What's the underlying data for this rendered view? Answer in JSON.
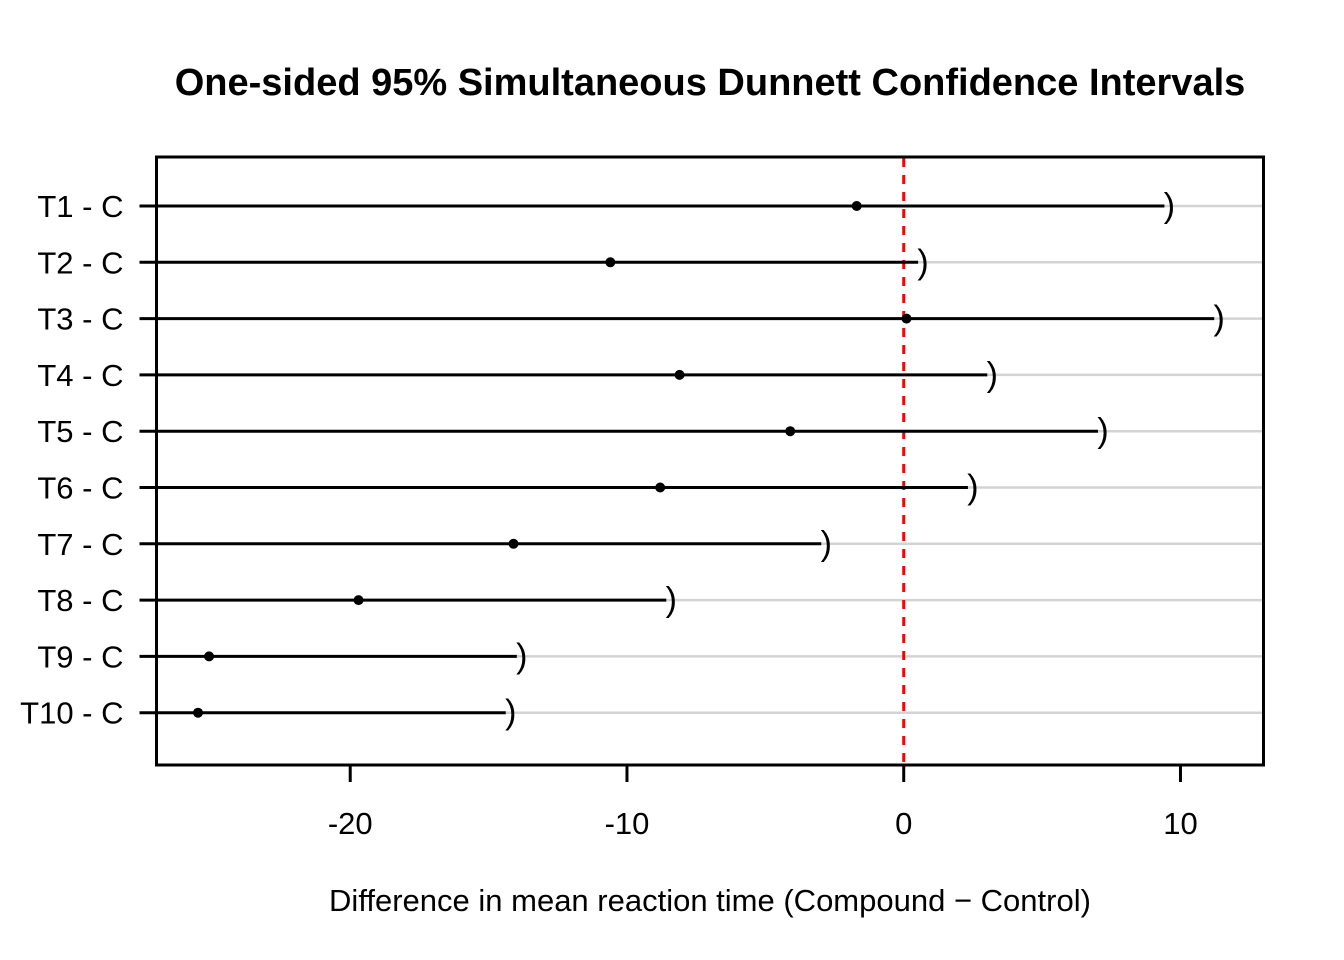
{
  "page": {
    "background": "#FFFFFF"
  },
  "chart_data": {
    "type": "interval",
    "subtype": "one-sided simultaneous confidence intervals (Dunnett)",
    "title": "One-sided 95% Simultaneous Dunnett Confidence Intervals",
    "xlabel": "Difference in mean reaction time (Compound − Control)",
    "ylabel": "",
    "categories": [
      "T1 - C",
      "T2 - C",
      "T3 - C",
      "T4 - C",
      "T5 - C",
      "T6 - C",
      "T7 - C",
      "T8 - C",
      "T9 - C",
      "T10 - C"
    ],
    "series": [
      {
        "name": "estimate",
        "marker": "filled-circle",
        "values": [
          -1.7,
          -10.6,
          0.1,
          -8.1,
          -4.1,
          -8.8,
          -14.1,
          -19.7,
          -25.1,
          -25.5
        ]
      },
      {
        "name": "upper_bound",
        "marker": "right-parenthesis-open-interval",
        "values": [
          9.6,
          0.7,
          11.4,
          3.2,
          7.2,
          2.5,
          -2.8,
          -8.4,
          -13.8,
          -14.2
        ]
      }
    ],
    "lower_bound": "-Inf",
    "upper_bound_marker_glyph": ")",
    "x_ticks": [
      -20,
      -10,
      0,
      10
    ],
    "xlim": [
      -27,
      13
    ],
    "reference_line": {
      "x": 0,
      "style": "dashed",
      "color": "#FF0000"
    },
    "grid": {
      "horizontal_per_row": true,
      "color": "#D3D3D3"
    },
    "legend": "none",
    "colors": {
      "interval": "#000000",
      "point": "#000000",
      "reference_line": "#FF0000",
      "gridline": "#D3D3D3",
      "border": "#000000",
      "background": "#FFFFFF"
    }
  }
}
